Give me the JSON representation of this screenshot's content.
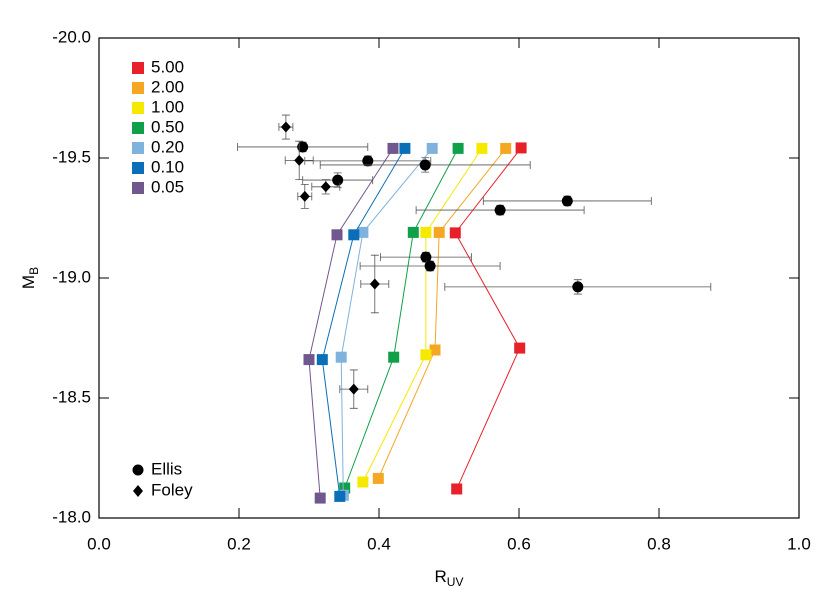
{
  "chart_data": {
    "type": "scatter",
    "xlabel": "R",
    "xlabel_sub": "UV",
    "ylabel": "M",
    "ylabel_sub": "B",
    "xlim": [
      0,
      1
    ],
    "ylim": [
      -18,
      -20
    ],
    "xticks": [
      {
        "value": 0,
        "label": "0.0"
      },
      0.2,
      0.4,
      0.6,
      0.8,
      {
        "value": 1,
        "label": "1.0"
      }
    ],
    "yticks": [
      {
        "value": -20,
        "label": "-20.0"
      },
      -19.5,
      {
        "value": -19,
        "label": "-19.0"
      },
      -18.5,
      {
        "value": -18,
        "label": "-18.0"
      }
    ],
    "series": [
      {
        "name": "5.00",
        "color": "#e8202a",
        "marker": "square",
        "x": [
          0.603,
          0.509,
          0.601,
          0.511
        ],
        "values": [
          -19.542,
          -19.188,
          -18.708,
          -18.121
        ]
      },
      {
        "name": "2.00",
        "color": "#f5a623",
        "marker": "square",
        "x": [
          0.581,
          0.486,
          0.48,
          0.399
        ],
        "values": [
          -19.54,
          -19.19,
          -18.7,
          -18.165
        ]
      },
      {
        "name": "1.00",
        "color": "#f5e900",
        "marker": "square",
        "x": [
          0.547,
          0.467,
          0.467,
          0.377
        ],
        "values": [
          -19.54,
          -19.19,
          -18.68,
          -18.15
        ]
      },
      {
        "name": "0.50",
        "color": "#10a04a",
        "marker": "square",
        "x": [
          0.513,
          0.449,
          0.421,
          0.351
        ],
        "values": [
          -19.54,
          -19.19,
          -18.67,
          -18.125
        ]
      },
      {
        "name": "0.20",
        "color": "#7fb2dd",
        "marker": "square",
        "x": [
          0.476,
          0.377,
          0.346,
          0.349
        ],
        "values": [
          -19.54,
          -19.19,
          -18.67,
          -18.095
        ]
      },
      {
        "name": "0.10",
        "color": "#0a6fb8",
        "marker": "square",
        "x": [
          0.437,
          0.364,
          0.319,
          0.344
        ],
        "values": [
          -19.54,
          -19.18,
          -18.66,
          -18.09
        ]
      },
      {
        "name": "0.05",
        "color": "#70578e",
        "marker": "square",
        "x": [
          0.42,
          0.34,
          0.3,
          0.316
        ],
        "values": [
          -19.54,
          -19.18,
          -18.66,
          -18.083
        ]
      },
      {
        "name": "Ellis",
        "color": "#000000",
        "marker": "circle",
        "x": [
          0.291,
          0.384,
          0.466,
          0.341,
          0.669,
          0.573,
          0.467,
          0.473,
          0.684
        ],
        "values": [
          -19.546,
          -19.488,
          -19.471,
          -19.408,
          -19.321,
          -19.283,
          -19.087,
          -19.05,
          -18.963
        ],
        "xerr": [
          0.093,
          0.09,
          0.15,
          0.05,
          0.12,
          0.12,
          0.065,
          0.1,
          0.19
        ],
        "yerr": [
          0.02,
          0.02,
          0.03,
          0.03,
          0.02,
          0.02,
          0.02,
          0.02,
          0.03
        ]
      },
      {
        "name": "Foley",
        "color": "#000000",
        "marker": "diamond",
        "x": [
          0.267,
          0.286,
          0.324,
          0.294,
          0.394,
          0.364
        ],
        "values": [
          -19.629,
          -19.49,
          -19.38,
          -19.34,
          -18.975,
          -18.537
        ],
        "xerr": [
          0.01,
          0.02,
          0.02,
          0.01,
          0.02,
          0.02
        ],
        "yerr": [
          0.05,
          0.08,
          0.03,
          0.05,
          0.12,
          0.08
        ]
      }
    ]
  }
}
